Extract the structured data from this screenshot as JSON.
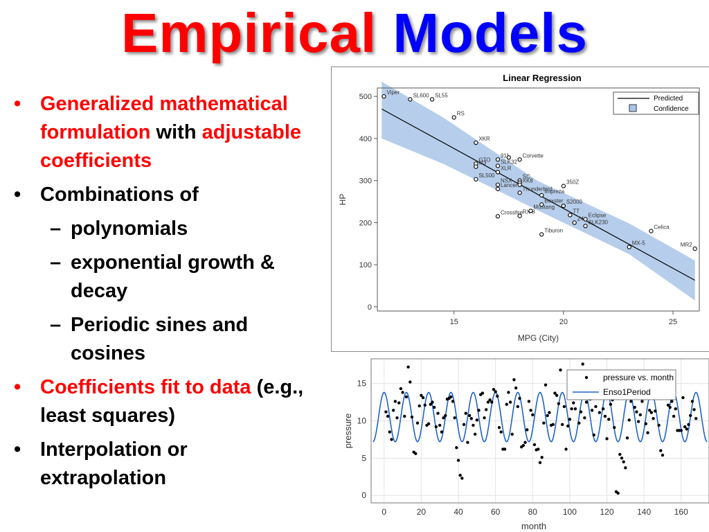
{
  "title": {
    "part1": "Empirical",
    "part2": "Models",
    "color1": "#ff0000",
    "color2": "#0000ff"
  },
  "bullets": [
    {
      "parts": [
        {
          "text": "Generalized mathematical formulation",
          "red": true
        },
        {
          "text": " with ",
          "red": false
        },
        {
          "text": "adjustable coefficients",
          "red": true
        }
      ]
    },
    {
      "parts": [
        {
          "text": "Combinations of",
          "red": false
        }
      ]
    },
    {
      "sub": true,
      "parts": [
        {
          "text": "polynomials",
          "red": false
        }
      ]
    },
    {
      "sub": true,
      "parts": [
        {
          "text": "exponential growth & decay",
          "red": false
        }
      ]
    },
    {
      "sub": true,
      "parts": [
        {
          "text": "Periodic sines and cosines",
          "red": false
        }
      ]
    },
    {
      "parts": [
        {
          "text": "Coefficients fit to data",
          "red": true
        },
        {
          "text": " (e.g., least squares)",
          "red": false
        }
      ]
    },
    {
      "parts": [
        {
          "text": "Interpolation or extrapolation",
          "red": false
        }
      ]
    }
  ],
  "bullet_symbol": "•",
  "dash_symbol": "–",
  "chart_data": [
    {
      "type": "scatter",
      "title": "Linear Regression",
      "xlabel": "MPG (City)",
      "ylabel": "HP",
      "xlim": [
        11.5,
        26.2
      ],
      "ylim": [
        -10,
        520
      ],
      "xticks": [
        15,
        20,
        25
      ],
      "yticks": [
        0,
        100,
        200,
        300,
        400,
        500
      ],
      "legend": {
        "position": "top-right",
        "items": [
          "Predicted",
          "Confidence"
        ]
      },
      "line_color": "#000000",
      "band_color": "#a9c6e8",
      "fit_line": {
        "x": [
          11.7,
          26
        ],
        "y": [
          470,
          63
        ]
      },
      "band": {
        "x": [
          11.7,
          14.5,
          18.8,
          23,
          26
        ],
        "lower": [
          400,
          340,
          230,
          125,
          15
        ],
        "upper": [
          535,
          450,
          300,
          198,
          110
        ]
      },
      "points": [
        {
          "label": "Viper",
          "x": 11.8,
          "y": 500
        },
        {
          "label": "SL600",
          "x": 13,
          "y": 493
        },
        {
          "label": "SL55",
          "x": 14,
          "y": 493
        },
        {
          "label": "RS",
          "x": 15,
          "y": 450
        },
        {
          "label": "XKR",
          "x": 16,
          "y": 390
        },
        {
          "label": "911",
          "x": 17,
          "y": 350
        },
        {
          "label": "",
          "x": 17.5,
          "y": 355
        },
        {
          "label": "Corvette",
          "x": 18,
          "y": 350
        },
        {
          "label": "GTO",
          "x": 16,
          "y": 340
        },
        {
          "label": "M3",
          "x": 16,
          "y": 333
        },
        {
          "label": "SLK32",
          "x": 17,
          "y": 335
        },
        {
          "label": "XLR",
          "x": 17,
          "y": 320
        },
        {
          "label": "SL500",
          "x": 16,
          "y": 303
        },
        {
          "label": "NSX",
          "x": 17,
          "y": 290
        },
        {
          "label": "SC",
          "x": 18,
          "y": 300
        },
        {
          "label": "",
          "x": 18,
          "y": 295
        },
        {
          "label": "Lancer",
          "x": 17,
          "y": 280
        },
        {
          "label": "XK8",
          "x": 18,
          "y": 290
        },
        {
          "label": "Thunderbird",
          "x": 18,
          "y": 271
        },
        {
          "label": "Impreza",
          "x": 19,
          "y": 265
        },
        {
          "label": "350Z",
          "x": 20,
          "y": 287
        },
        {
          "label": "Boxster",
          "x": 19,
          "y": 243
        },
        {
          "label": "S2000",
          "x": 20,
          "y": 240
        },
        {
          "label": "Mustang",
          "x": 18.5,
          "y": 228
        },
        {
          "label": "Crossfire",
          "x": 17,
          "y": 215
        },
        {
          "label": "RX-8",
          "x": 18,
          "y": 216
        },
        {
          "label": "TT",
          "x": 20.3,
          "y": 218
        },
        {
          "label": "Eclipse",
          "x": 21,
          "y": 208
        },
        {
          "label": "Z4",
          "x": 20.5,
          "y": 200
        },
        {
          "label": "SLK230",
          "x": 21,
          "y": 192
        },
        {
          "label": "Tiburon",
          "x": 19,
          "y": 172
        },
        {
          "label": "Celica",
          "x": 24,
          "y": 180
        },
        {
          "label": "MX-5",
          "x": 23,
          "y": 142
        },
        {
          "label": "MR2",
          "x": 26,
          "y": 138
        }
      ]
    },
    {
      "type": "line",
      "xlabel": "month",
      "ylabel": "pressure",
      "xlim": [
        -7,
        175
      ],
      "ylim": [
        -1,
        18.3
      ],
      "xticks": [
        0,
        20,
        40,
        60,
        80,
        100,
        120,
        140,
        160
      ],
      "yticks": [
        0,
        5,
        10,
        15
      ],
      "grid": true,
      "legend": {
        "position": "top-right",
        "items": [
          "pressure vs. month",
          "Enso1Period"
        ]
      },
      "line_color": "#1f63c4",
      "point_color": "#000000",
      "fit": {
        "name": "Enso1Period",
        "mean": 10.5,
        "amplitude": 3.3,
        "period": 12,
        "peak_month": 12,
        "x_range": [
          -6,
          174
        ]
      },
      "scatter": {
        "name": "pressure vs. month",
        "x": [
          1,
          2,
          3,
          4,
          5,
          6,
          7,
          8,
          9,
          10,
          11,
          12,
          13,
          14,
          15,
          16,
          17,
          18,
          19,
          20,
          21,
          22,
          23,
          24,
          25,
          26,
          27,
          28,
          29,
          30,
          31,
          32,
          33,
          34,
          35,
          36,
          37,
          38,
          39,
          40,
          41,
          42,
          43,
          44,
          45,
          46,
          47,
          48,
          49,
          50,
          51,
          52,
          53,
          54,
          55,
          56,
          57,
          58,
          59,
          60,
          61,
          62,
          63,
          64,
          65,
          66,
          67,
          68,
          69,
          70,
          71,
          72,
          73,
          74,
          75,
          76,
          77,
          78,
          79,
          80,
          81,
          82,
          83,
          84,
          85,
          86,
          87,
          88,
          89,
          90,
          91,
          92,
          93,
          94,
          95,
          96,
          97,
          98,
          99,
          100,
          101,
          102,
          103,
          104,
          105,
          106,
          107,
          108,
          109,
          110,
          111,
          112,
          113,
          114,
          115,
          116,
          117,
          118,
          119,
          120,
          121,
          122,
          123,
          124,
          125,
          126,
          127,
          128,
          129,
          130,
          131,
          132,
          133,
          134,
          135,
          136,
          137,
          138,
          139,
          140,
          141,
          142,
          143,
          144,
          145,
          146,
          147,
          148,
          149,
          150,
          151,
          152,
          153,
          154,
          155,
          156,
          157,
          158,
          159,
          160,
          161,
          162,
          163,
          164,
          165,
          166,
          167,
          168
        ],
        "y": [
          11.2,
          10.6,
          8.5,
          7.5,
          11.4,
          12.6,
          10.4,
          12.4,
          14.3,
          13.8,
          10.6,
          13.2,
          17.2,
          15.2,
          10.5,
          5.8,
          5.6,
          9.7,
          12,
          13.4,
          13.1,
          12.1,
          9.4,
          9.6,
          12.2,
          12.5,
          11.8,
          9.2,
          11,
          9.4,
          8.5,
          10.4,
          10.7,
          12.9,
          13,
          13.2,
          12.6,
          10.4,
          6.4,
          4.7,
          2.7,
          2.3,
          9.5,
          11,
          7.1,
          10.7,
          10.3,
          9.4,
          8.2,
          10.1,
          11.4,
          13.5,
          13.7,
          10.4,
          11.5,
          12.5,
          12.8,
          12.5,
          14.2,
          13.9,
          13.3,
          9.1,
          8.5,
          6.2,
          6.2,
          12.2,
          13.8,
          12.5,
          8.2,
          15.5,
          14.4,
          11.9,
          13,
          6.5,
          6.7,
          7.1,
          8.8,
          12.6,
          11.4,
          10.8,
          6.8,
          6.1,
          6.2,
          4.4,
          5.1,
          9.7,
          14.8,
          10.7,
          11.1,
          9.4,
          9.5,
          13.7,
          13.4,
          12.3,
          16.8,
          9.5,
          11.9,
          6.2,
          9.3,
          10.2,
          11.6,
          12.4,
          11.6,
          13.2,
          9.7,
          11.2,
          17.6,
          10.4,
          12.5,
          14,
          12.9,
          11.4,
          8.1,
          11.9,
          13.3,
          11.1,
          13.6,
          11.6,
          10.6,
          7.6,
          10.2,
          12.2,
          12.8,
          9.1,
          0.5,
          0.3,
          5.5,
          5,
          4.5,
          3.7,
          7.7,
          10.1,
          12.6,
          14.3,
          11.8,
          11.2,
          9.9,
          10.8,
          12.6,
          13.6,
          9.6,
          8.4,
          11.4,
          11.1,
          10.3,
          11.3,
          13.1,
          9.4,
          6,
          5.4,
          13,
          13.8,
          12.1,
          11.8,
          12.6,
          10.6,
          11.6,
          8.7,
          8.7,
          8.7,
          13.1,
          9.2,
          8.9,
          9.5,
          10.7,
          12.6,
          11.5,
          10.3
        ]
      }
    }
  ]
}
